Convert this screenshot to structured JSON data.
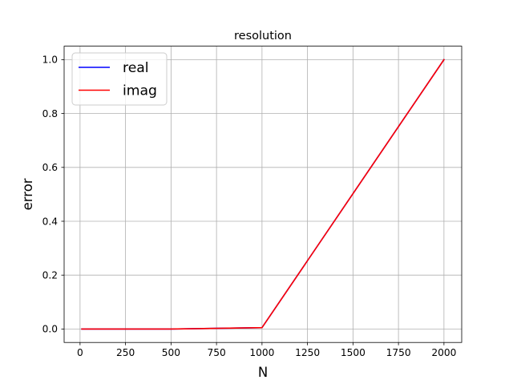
{
  "chart_data": {
    "type": "line",
    "title": "resolution",
    "xlabel": "N",
    "ylabel": "error",
    "xlim": [
      -87.5,
      2097.5
    ],
    "ylim": [
      -0.05,
      1.05
    ],
    "xticks": [
      0,
      250,
      500,
      750,
      1000,
      1250,
      1500,
      1750,
      2000
    ],
    "xtick_labels": [
      "0",
      "250",
      "500",
      "750",
      "1000",
      "1250",
      "1500",
      "1750",
      "2000"
    ],
    "yticks": [
      0.0,
      0.2,
      0.4,
      0.6,
      0.8,
      1.0
    ],
    "ytick_labels": [
      "0.0",
      "0.2",
      "0.4",
      "0.6",
      "0.8",
      "1.0"
    ],
    "grid": true,
    "legend_position": "top-left",
    "series": [
      {
        "name": "real",
        "color": "#0000ff",
        "x": [
          10,
          500,
          1000,
          2000
        ],
        "y": [
          0.0,
          0.0,
          0.005,
          1.0
        ]
      },
      {
        "name": "imag",
        "color": "#ff0000",
        "x": [
          10,
          500,
          1000,
          2000
        ],
        "y": [
          0.0,
          0.0,
          0.005,
          1.0
        ]
      }
    ]
  }
}
